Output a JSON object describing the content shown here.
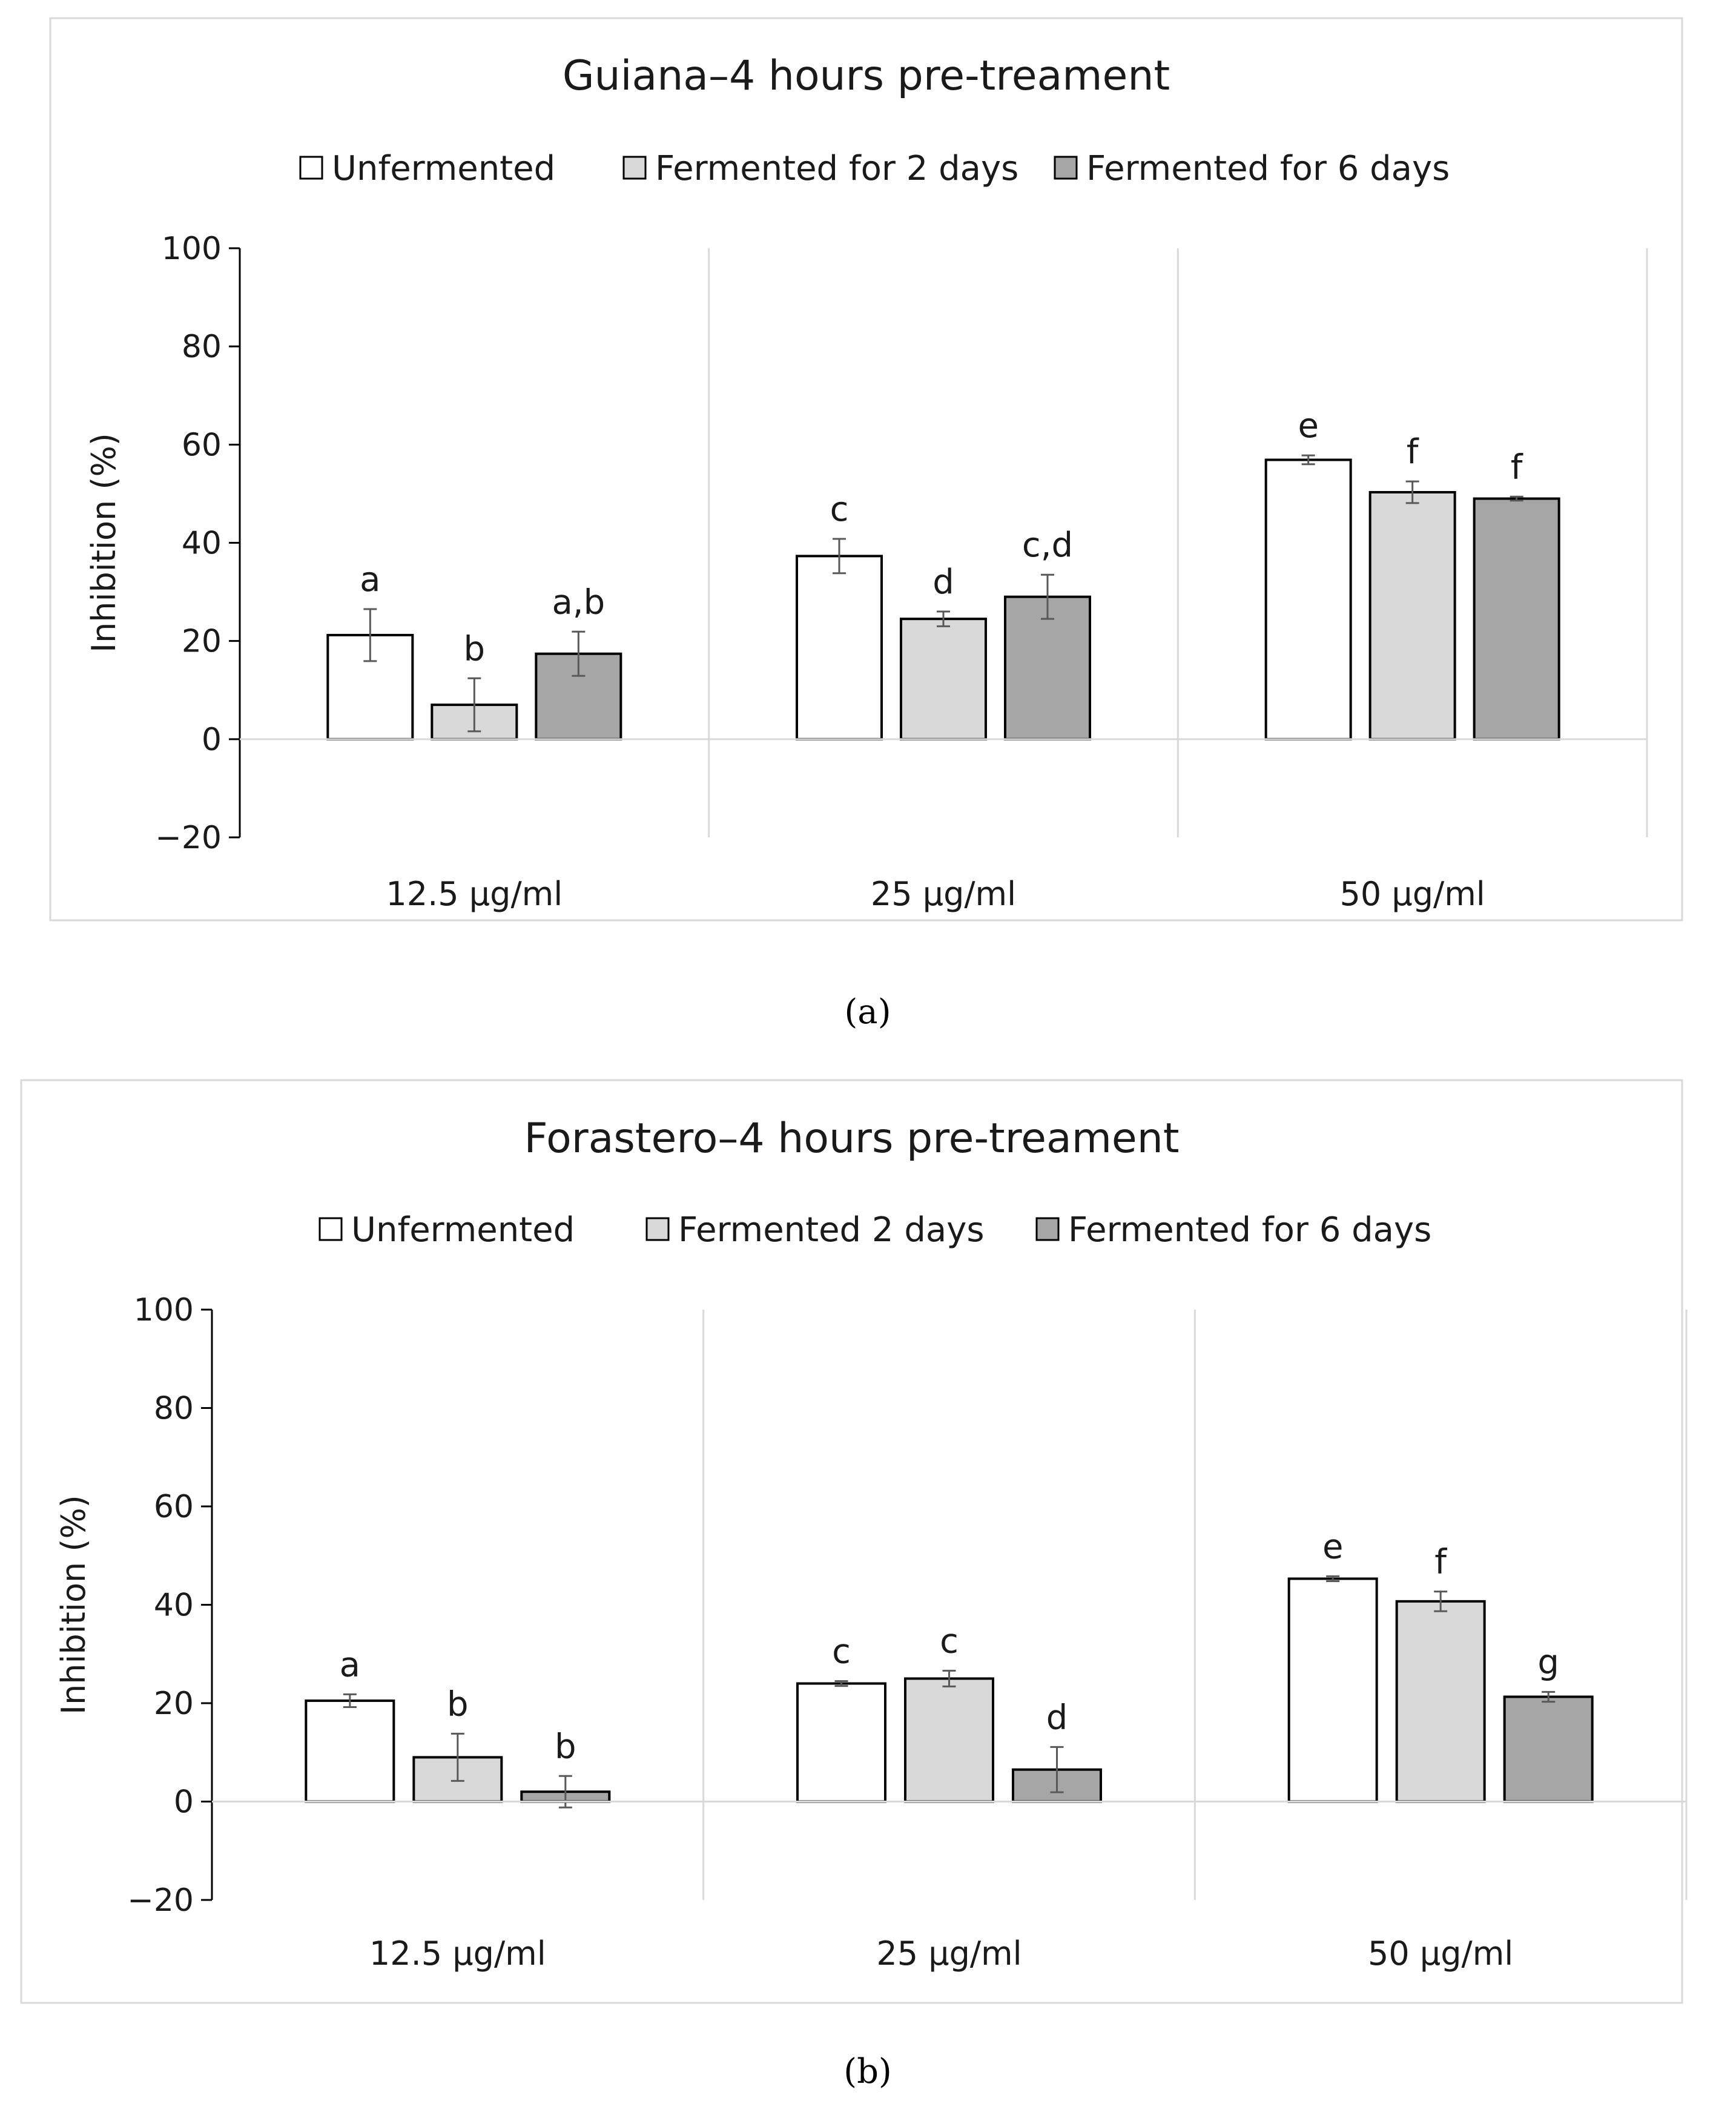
{
  "chart_data": [
    {
      "type": "bar",
      "title": "Guiana–4 hours pre-treament",
      "caption": "(a)",
      "ylabel": "Inhibition (%)",
      "xlabel": "",
      "ylim": [
        -20,
        100
      ],
      "yticks": [
        -20,
        0,
        20,
        40,
        60,
        80,
        100
      ],
      "ytick_labels": [
        "−20",
        "0",
        "20",
        "40",
        "60",
        "80",
        "100"
      ],
      "grid": "vertical category separators",
      "legend": "top-center",
      "categories": [
        "12.5 µg/ml",
        "25 µg/ml",
        "50 µg/ml"
      ],
      "series": [
        {
          "name": "Unfermented",
          "color": "#ffffff",
          "values": [
            21.2,
            37.3,
            56.9
          ],
          "errors": [
            5.3,
            3.5,
            0.9
          ],
          "labels": [
            "a",
            "c",
            "e"
          ]
        },
        {
          "name": "Fermented for 2 days",
          "color": "#d9d9d9",
          "values": [
            7.0,
            24.5,
            50.3
          ],
          "errors": [
            5.4,
            1.5,
            2.2
          ],
          "labels": [
            "b",
            "d",
            "f"
          ]
        },
        {
          "name": "Fermented for 6 days",
          "color": "#a6a6a6",
          "values": [
            17.4,
            29.0,
            49.0
          ],
          "errors": [
            4.5,
            4.5,
            0.4
          ],
          "labels": [
            "a,b",
            "c,d",
            "f"
          ]
        }
      ]
    },
    {
      "type": "bar",
      "title": "Forastero–4 hours pre-treament",
      "caption": "(b)",
      "ylabel": "Inhibition (%)",
      "xlabel": "",
      "ylim": [
        -20,
        100
      ],
      "yticks": [
        -20,
        0,
        20,
        40,
        60,
        80,
        100
      ],
      "ytick_labels": [
        "−20",
        "0",
        "20",
        "40",
        "60",
        "80",
        "100"
      ],
      "grid": "vertical category separators",
      "legend": "top-center",
      "categories": [
        "12.5 µg/ml",
        "25 µg/ml",
        "50 µg/ml"
      ],
      "series": [
        {
          "name": "Unfermented",
          "color": "#ffffff",
          "values": [
            20.5,
            24.0,
            45.3
          ],
          "errors": [
            1.3,
            0.5,
            0.5
          ],
          "labels": [
            "a",
            "c",
            "e"
          ]
        },
        {
          "name": "Fermented 2 days",
          "color": "#d9d9d9",
          "values": [
            9.0,
            25.0,
            40.7
          ],
          "errors": [
            4.8,
            1.6,
            2.0
          ],
          "labels": [
            "b",
            "c",
            "f"
          ]
        },
        {
          "name": "Fermented for 6 days",
          "color": "#a6a6a6",
          "values": [
            2.0,
            6.5,
            21.3
          ],
          "errors": [
            3.2,
            4.6,
            1.0
          ],
          "labels": [
            "b",
            "d",
            "g"
          ]
        }
      ]
    }
  ]
}
